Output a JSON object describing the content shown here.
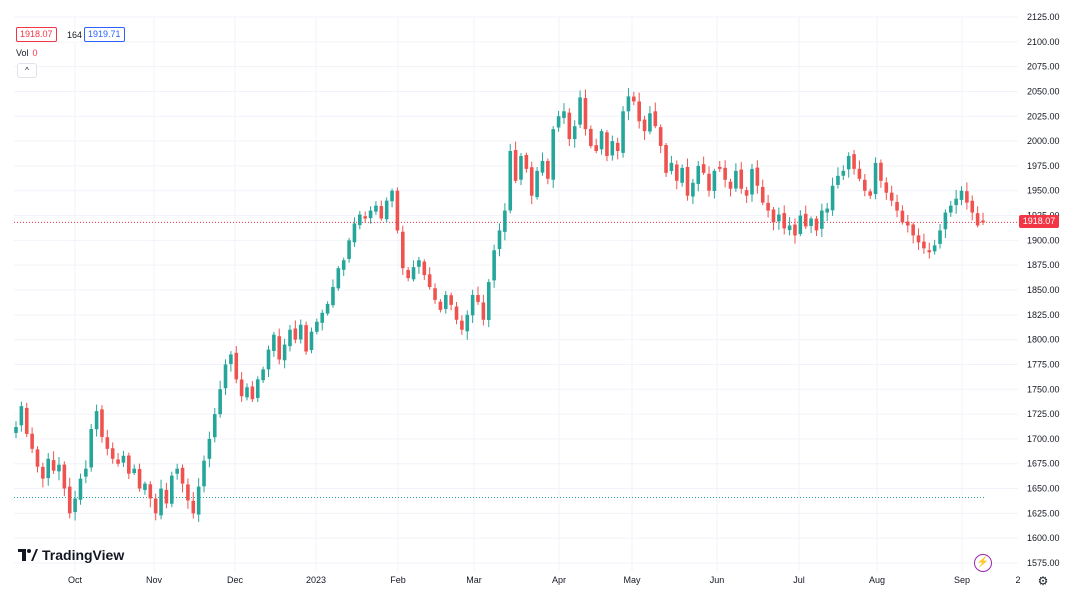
{
  "legend": {
    "close_badge": "1918.07",
    "spread": "164",
    "ask_badge": "1919.71",
    "volume_label": "Vol",
    "volume_value": "0",
    "collapse_glyph": "^"
  },
  "brand": {
    "name": "TradingView"
  },
  "last_price_label": "1918.07",
  "colors": {
    "up": "#26a69a",
    "down": "#ef5350",
    "price_line": "#f23645",
    "ref_line": "#26a69a",
    "bolt": "#9c27b0"
  },
  "icons": {
    "bolt": "lightning-icon",
    "settings": "gear-icon"
  },
  "chart_data": {
    "type": "candlestick",
    "title": "",
    "ylim": [
      1575,
      2125
    ],
    "y_ticks": [
      "1575.00",
      "1600.00",
      "1625.00",
      "1650.00",
      "1675.00",
      "1700.00",
      "1725.00",
      "1750.00",
      "1775.00",
      "1800.00",
      "1825.00",
      "1850.00",
      "1875.00",
      "1900.00",
      "1925.00",
      "1950.00",
      "1975.00",
      "2000.00",
      "2025.00",
      "2050.00",
      "2075.00",
      "2100.00",
      "2125.00"
    ],
    "x_labels": [
      "Oct",
      "Nov",
      "Dec",
      "2023",
      "Feb",
      "Mar",
      "Apr",
      "May",
      "Jun",
      "Jul",
      "Aug",
      "Sep",
      "2"
    ],
    "last_price": 1918.07,
    "reference_level": 1641,
    "series": [
      1712,
      1733,
      1705,
      1690,
      1672,
      1660,
      1680,
      1668,
      1674,
      1650,
      1625,
      1640,
      1660,
      1670,
      1710,
      1728,
      1702,
      1690,
      1680,
      1675,
      1683,
      1665,
      1670,
      1650,
      1655,
      1640,
      1625,
      1650,
      1635,
      1663,
      1670,
      1655,
      1638,
      1625,
      1652,
      1678,
      1700,
      1725,
      1750,
      1775,
      1785,
      1760,
      1743,
      1752,
      1740,
      1760,
      1770,
      1790,
      1805,
      1780,
      1795,
      1810,
      1800,
      1815,
      1788,
      1808,
      1818,
      1827,
      1836,
      1853,
      1872,
      1880,
      1900,
      1917,
      1926,
      1922,
      1930,
      1935,
      1922,
      1940,
      1950,
      1910,
      1872,
      1862,
      1873,
      1880,
      1865,
      1853,
      1840,
      1830,
      1845,
      1835,
      1820,
      1810,
      1825,
      1845,
      1838,
      1820,
      1858,
      1890,
      1910,
      1930,
      1990,
      1960,
      1985,
      1972,
      1945,
      1970,
      1980,
      1962,
      2012,
      2025,
      2030,
      2002,
      2015,
      2044,
      2012,
      1995,
      1990,
      2010,
      1985,
      2000,
      1990,
      2030,
      2045,
      2040,
      2020,
      2010,
      2028,
      2015,
      1995,
      1968,
      1978,
      1960,
      1973,
      1945,
      1958,
      1975,
      1968,
      1950,
      1970,
      1972,
      1961,
      1952,
      1970,
      1952,
      1945,
      1972,
      1955,
      1938,
      1930,
      1918,
      1926,
      1912,
      1915,
      1905,
      1925,
      1914,
      1922,
      1910,
      1930,
      1932,
      1955,
      1965,
      1970,
      1985,
      1972,
      1962,
      1950,
      1945,
      1978,
      1960,
      1948,
      1940,
      1930,
      1918,
      1915,
      1905,
      1898,
      1892,
      1888,
      1895,
      1910,
      1928,
      1935,
      1942,
      1950,
      1938,
      1928,
      1915,
      1918
    ]
  }
}
